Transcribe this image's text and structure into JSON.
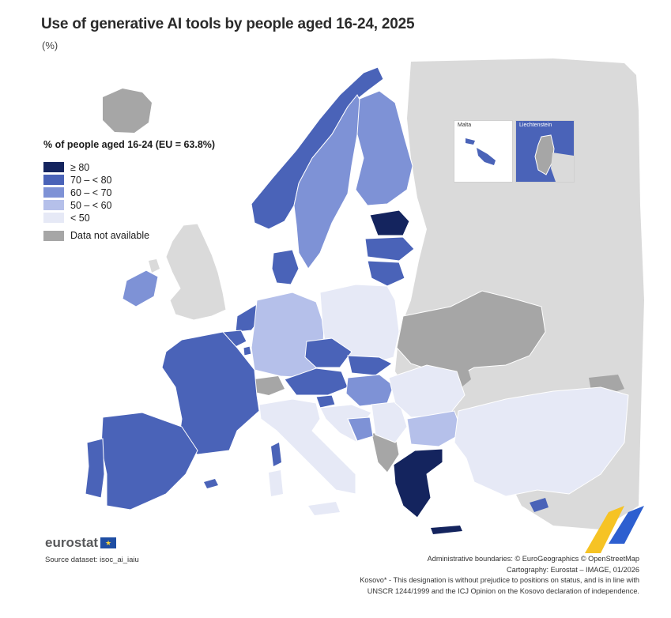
{
  "title": "Use of generative AI tools by people aged 16-24, 2025",
  "subtitle": "(%)",
  "legend": {
    "title": "% of people aged 16-24 (EU = 63.8%)",
    "classes": [
      {
        "label": "≥ 80",
        "color": "#14245e"
      },
      {
        "label": "70 – < 80",
        "color": "#4a63b8"
      },
      {
        "label": "60 – < 70",
        "color": "#7e92d6"
      },
      {
        "label": "50 – < 60",
        "color": "#b5c0ea"
      },
      {
        "label": "< 50",
        "color": "#e6e9f6"
      }
    ],
    "na": {
      "label": "Data not available",
      "color": "#a6a6a6"
    }
  },
  "insets": {
    "malta": {
      "label": "Malta"
    },
    "liechtenstein": {
      "label": "Liechtenstein"
    }
  },
  "colors": {
    "non_eu": "#dadada",
    "na": "#a6a6a6",
    "sea": "#ffffff",
    "border": "#ffffff"
  },
  "footer": {
    "logo": "eurostat",
    "source": "Source dataset: isoc_ai_iaiu",
    "credits": [
      "Administrative boundaries: © EuroGeographics © OpenStreetMap",
      "Cartography: Eurostat – IMAGE, 01/2026",
      "Kosovo* - This designation is without prejudice to positions on status, and is in line with",
      "UNSCR 1244/1999 and the ICJ Opinion on the Kosovo declaration of independence."
    ]
  }
}
